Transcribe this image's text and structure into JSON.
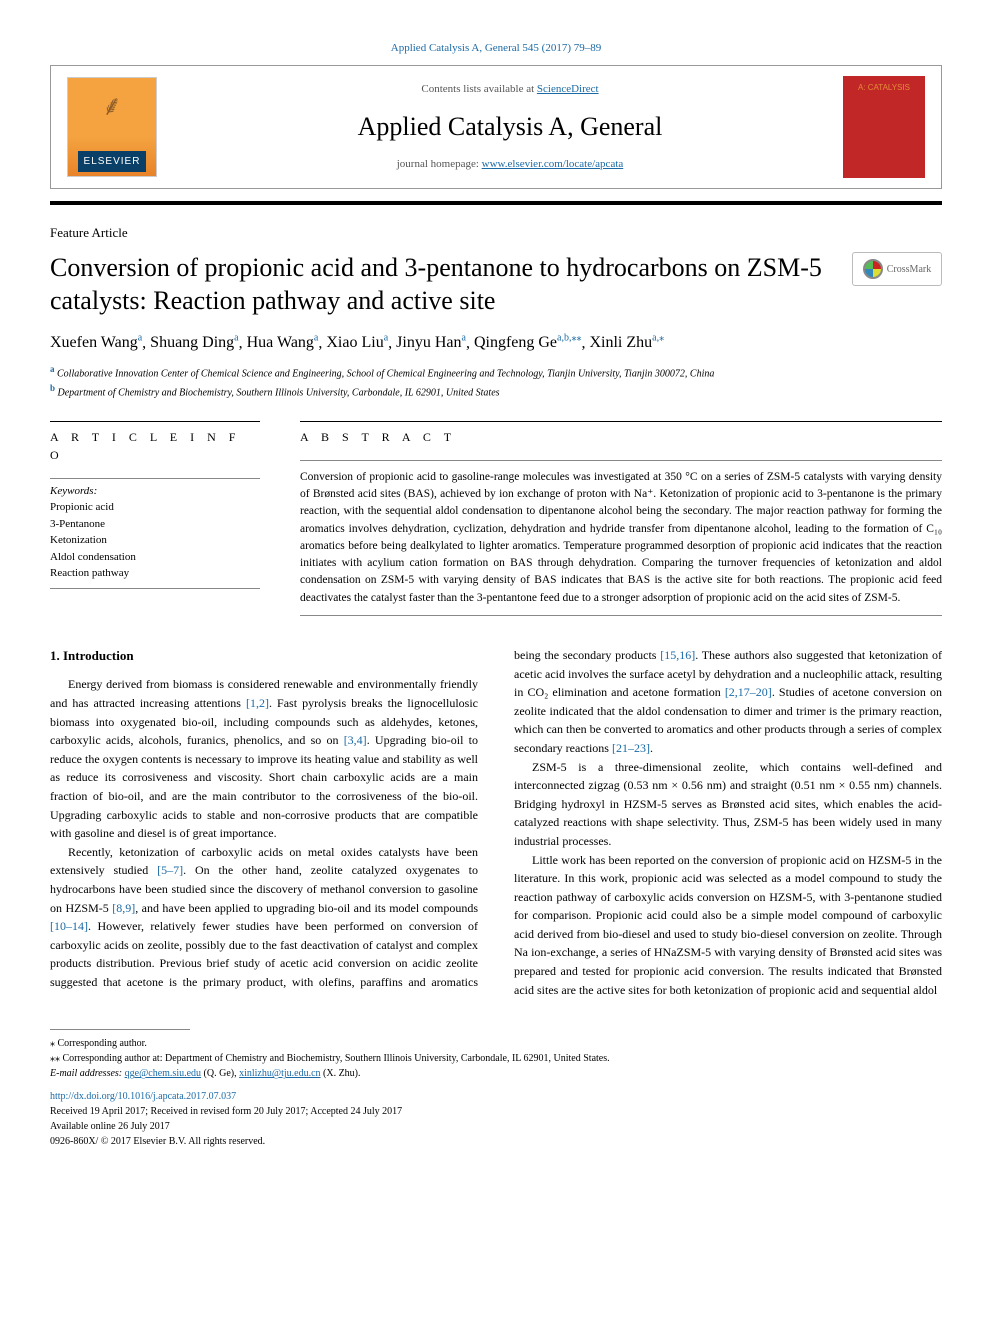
{
  "citation": "Applied Catalysis A, General 545 (2017) 79–89",
  "header": {
    "contents_prefix": "Contents lists available at ",
    "contents_link": "ScienceDirect",
    "journal": "Applied Catalysis A, General",
    "homepage_prefix": "journal homepage: ",
    "homepage_url": "www.elsevier.com/locate/apcata",
    "publisher": "ELSEVIER",
    "cover_text": "A: CATALYSIS"
  },
  "article_type": "Feature Article",
  "title": "Conversion of propionic acid and 3-pentanone to hydrocarbons on ZSM-5 catalysts: Reaction pathway and active site",
  "crossmark": "CrossMark",
  "authors": [
    {
      "name": "Xuefen Wang",
      "aff": "a"
    },
    {
      "name": "Shuang Ding",
      "aff": "a"
    },
    {
      "name": "Hua Wang",
      "aff": "a"
    },
    {
      "name": "Xiao Liu",
      "aff": "a"
    },
    {
      "name": "Jinyu Han",
      "aff": "a"
    },
    {
      "name": "Qingfeng Ge",
      "aff": "a,b,⁎⁎"
    },
    {
      "name": "Xinli Zhu",
      "aff": "a,⁎"
    }
  ],
  "affiliations": [
    {
      "label": "a",
      "text": "Collaborative Innovation Center of Chemical Science and Engineering, School of Chemical Engineering and Technology, Tianjin University, Tianjin 300072, China"
    },
    {
      "label": "b",
      "text": "Department of Chemistry and Biochemistry, Southern Illinois University, Carbondale, IL 62901, United States"
    }
  ],
  "info_heading": "A R T I C L E  I N F O",
  "abstract_heading": "A B S T R A C T",
  "keywords_label": "Keywords:",
  "keywords": [
    "Propionic acid",
    "3-Pentanone",
    "Ketonization",
    "Aldol condensation",
    "Reaction pathway"
  ],
  "abstract": "Conversion of propionic acid to gasoline-range molecules was investigated at 350 °C on a series of ZSM-5 catalysts with varying density of Brønsted acid sites (BAS), achieved by ion exchange of proton with Na⁺. Ketonization of propionic acid to 3-pentanone is the primary reaction, with the sequential aldol condensation to dipentanone alcohol being the secondary. The major reaction pathway for forming the aromatics involves dehydration, cyclization, dehydration and hydride transfer from dipentanone alcohol, leading to the formation of C₁₀ aromatics before being dealkylated to lighter aromatics. Temperature programmed desorption of propionic acid indicates that the reaction initiates with acylium cation formation on BAS through dehydration. Comparing the turnover frequencies of ketonization and aldol condensation on ZSM-5 with varying density of BAS indicates that BAS is the active site for both reactions. The propionic acid feed deactivates the catalyst faster than the 3-pentantone feed due to a stronger adsorption of propionic acid on the acid sites of ZSM-5.",
  "intro_heading": "1. Introduction",
  "body": {
    "p1a": "Energy derived from biomass is considered renewable and environmentally friendly and has attracted increasing attentions ",
    "ref1": "[1,2]",
    "p1b": ". Fast pyrolysis breaks the lignocellulosic biomass into oxygenated bio-oil, including compounds such as aldehydes, ketones, carboxylic acids, alcohols, furanics, phenolics, and so on ",
    "ref2": "[3,4]",
    "p1c": ". Upgrading bio-oil to reduce the oxygen contents is necessary to improve its heating value and stability as well as reduce its corrosiveness and viscosity. Short chain carboxylic acids are a main fraction of bio-oil, and are the main contributor to the corrosiveness of the bio-oil. Upgrading carboxylic acids to stable and non-corrosive products that are compatible with gasoline and diesel is of great importance.",
    "p2a": "Recently, ketonization of carboxylic acids on metal oxides catalysts have been extensively studied ",
    "ref3": "[5–7]",
    "p2b": ". On the other hand, zeolite catalyzed oxygenates to hydrocarbons have been studied since the discovery of methanol conversion to gasoline on HZSM-5 ",
    "ref4": "[8,9]",
    "p2c": ", and have been applied to upgrading bio-oil and its model compounds ",
    "ref5": "[10–14]",
    "p2d": ". However, relatively fewer studies have been performed on conversion of carboxylic acids on zeolite, possibly due to the fast deactivation of catalyst and complex products distribution. Previous brief study of acetic acid conversion on acidic zeolite suggested that acetone is the primary product, with olefins, paraffins and aromatics being the secondary products ",
    "ref6": "[15,16]",
    "p2e": ". These authors also suggested that ketonization of acetic acid involves the surface acetyl by dehydration and a nucleophilic attack, resulting in CO₂ elimination and acetone formation ",
    "ref7": "[2,17–20]",
    "p2f": ". Studies of acetone conversion on zeolite indicated that the aldol condensation to dimer and trimer is the primary reaction, which can then be converted to aromatics and other products through a series of complex secondary reactions ",
    "ref8": "[21–23]",
    "p2g": ".",
    "p3": "ZSM-5 is a three-dimensional zeolite, which contains well-defined and interconnected zigzag (0.53 nm × 0.56 nm) and straight (0.51 nm × 0.55 nm) channels. Bridging hydroxyl in HZSM-5 serves as Brønsted acid sites, which enables the acid-catalyzed reactions with shape selectivity. Thus, ZSM-5 has been widely used in many industrial processes.",
    "p4": "Little work has been reported on the conversion of propionic acid on HZSM-5 in the literature. In this work, propionic acid was selected as a model compound to study the reaction pathway of carboxylic acids conversion on HZSM-5, with 3-pentanone studied for comparison. Propionic acid could also be a simple model compound of carboxylic acid derived from bio-diesel and used to study bio-diesel conversion on zeolite. Through Na ion-exchange, a series of HNaZSM-5 with varying density of Brønsted acid sites was prepared and tested for propionic acid conversion. The results indicated that Brønsted acid sites are the active sites for both ketonization of propionic acid and sequential aldol"
  },
  "footnotes": {
    "corr1": "⁎ Corresponding author.",
    "corr2": "⁎⁎ Corresponding author at: Department of Chemistry and Biochemistry, Southern Illinois University, Carbondale, IL 62901, United States.",
    "email_label": "E-mail addresses:",
    "email1": "qge@chem.siu.edu",
    "email1_name": " (Q. Ge), ",
    "email2": "xinlizhu@tju.edu.cn",
    "email2_name": " (X. Zhu)."
  },
  "doi": "http://dx.doi.org/10.1016/j.apcata.2017.07.037",
  "history": {
    "received": "Received 19 April 2017; Received in revised form 20 July 2017; Accepted 24 July 2017",
    "online": "Available online 26 July 2017",
    "copyright": "0926-860X/ © 2017 Elsevier B.V. All rights reserved."
  },
  "colors": {
    "link": "#1b6aa5",
    "elsevier_orange": "#f4a340",
    "elsevier_blue": "#0a4068",
    "cover_red": "#c22727"
  }
}
